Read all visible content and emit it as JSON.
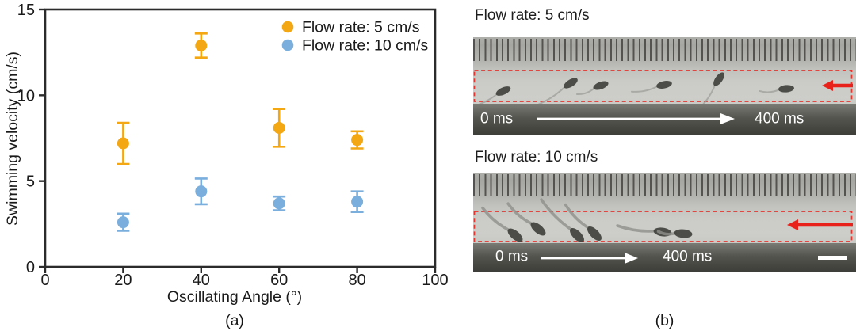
{
  "figure": {
    "panel_a_caption": "(a)",
    "panel_b_caption": "(b)"
  },
  "chart_data": {
    "type": "scatter",
    "title": "",
    "xlabel": "Oscillating Angle (°)",
    "ylabel": "Swimming velocity (cm/s)",
    "xlim": [
      0,
      100
    ],
    "ylim": [
      0,
      15
    ],
    "xticks": [
      0,
      20,
      40,
      60,
      80,
      100
    ],
    "yticks": [
      0,
      5,
      10,
      15
    ],
    "grid": false,
    "legend_position": "top-right-inside",
    "series": [
      {
        "name": "Flow rate: 5 cm/s",
        "color": "#F3A712",
        "x": [
          20,
          40,
          60,
          80
        ],
        "y": [
          7.2,
          12.9,
          8.1,
          7.4
        ],
        "yerr": [
          1.2,
          0.7,
          1.1,
          0.5
        ]
      },
      {
        "name": "Flow rate: 10 cm/s",
        "color": "#7AAEDC",
        "x": [
          20,
          40,
          60,
          80
        ],
        "y": [
          2.6,
          4.4,
          3.7,
          3.8
        ],
        "yerr": [
          0.5,
          0.75,
          0.4,
          0.6
        ]
      }
    ]
  },
  "panel_b": {
    "caption": "(b)",
    "accent_red": "#E8211A",
    "strips": [
      {
        "label": "Flow rate: 5 cm/s",
        "time_start": "0 ms",
        "time_end": "400 ms",
        "flow_direction": "left",
        "has_scalebar": false,
        "robots": [
          [
            38,
            68,
            -25,
            40
          ],
          [
            123,
            58,
            -32,
            45
          ],
          [
            161,
            61,
            -20,
            22
          ],
          [
            241,
            60,
            -12,
            32
          ],
          [
            310,
            53,
            -55,
            38
          ],
          [
            395,
            65,
            -5,
            24
          ]
        ]
      },
      {
        "label": "Flow rate: 10 cm/s",
        "time_start": "0 ms",
        "time_end": "400 ms",
        "flow_direction": "left",
        "has_scalebar": true,
        "robots": [
          [
            53,
            79,
            40,
            42
          ],
          [
            82,
            71,
            40,
            38
          ],
          [
            131,
            79,
            45,
            52
          ],
          [
            153,
            77,
            45,
            40
          ],
          [
            239,
            75,
            8,
            46
          ],
          [
            265,
            77,
            5,
            20
          ]
        ]
      }
    ]
  }
}
